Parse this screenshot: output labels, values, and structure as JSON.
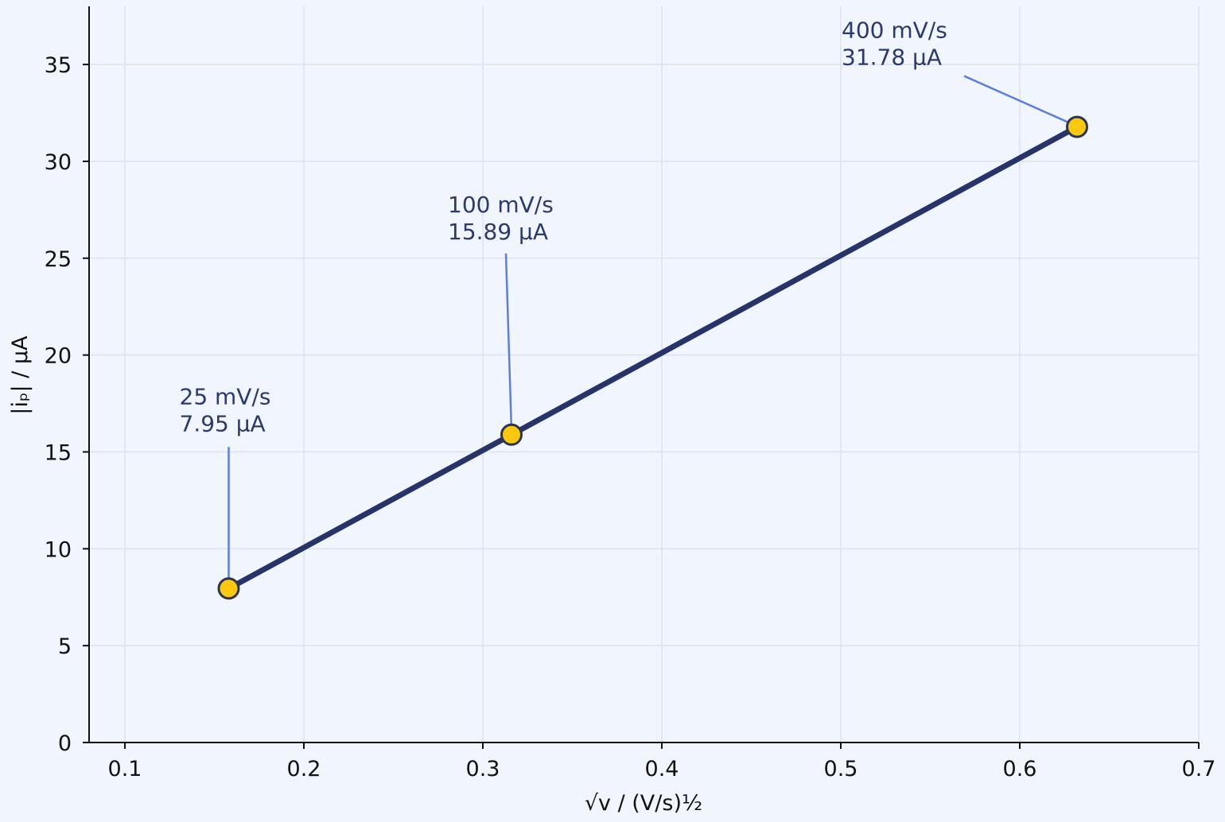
{
  "chart_data": {
    "type": "line",
    "title": "",
    "xlabel": "√v / (V/s)½",
    "ylabel": "|iₚ| / µA",
    "xlim": [
      0.08,
      0.7
    ],
    "ylim": [
      0,
      38
    ],
    "xticks": [
      0.1,
      0.2,
      0.3,
      0.4,
      0.5,
      0.6,
      0.7
    ],
    "xtick_labels": [
      "0.1",
      "0.2",
      "0.3",
      "0.4",
      "0.5",
      "0.6",
      "0.7"
    ],
    "yticks": [
      0,
      5,
      10,
      15,
      20,
      25,
      30,
      35
    ],
    "ytick_labels": [
      "0",
      "5",
      "10",
      "15",
      "20",
      "25",
      "30",
      "35"
    ],
    "grid": true,
    "series": [
      {
        "x": [
          0.158,
          0.316,
          0.632
        ],
        "y": [
          7.95,
          15.89,
          31.78
        ]
      }
    ],
    "annotations": [
      {
        "point_index": 0,
        "line1": "25 mV/s",
        "line2": "7.95 µA"
      },
      {
        "point_index": 1,
        "line1": "100 mV/s",
        "line2": "15.89 µA"
      },
      {
        "point_index": 2,
        "line1": "400 mV/s",
        "line2": "31.78 µA"
      }
    ],
    "colors": {
      "background": "#f1f5fd",
      "line": "#26346a",
      "marker_fill": "#fcc80c",
      "marker_edge": "#2a3450",
      "annotation_text": "#2b3a6b",
      "leader": "#5b80dc"
    }
  }
}
